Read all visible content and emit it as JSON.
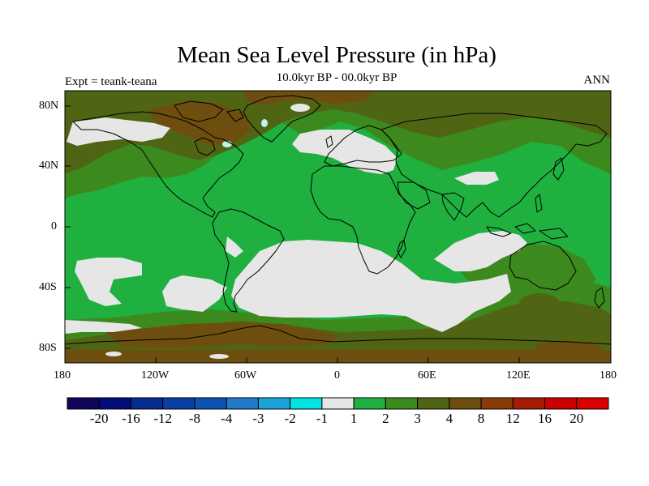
{
  "title": "Mean Sea Level Pressure (in hPa)",
  "subtitle": "10.0kyr BP - 00.0kyr BP",
  "experiment": "Expt = teank-teana",
  "season": "ANN",
  "colors": {
    "land_outline": "#000000",
    "frame": "#000000",
    "band_neg1_1": "#e6e6e6",
    "band_1_2": "#1fb040",
    "band_2_3": "#3c8a1e",
    "band_3_4": "#4f6514",
    "band_4_8": "#6e4e0e",
    "polar_highlight": "#b9f6f0"
  },
  "chart_data": {
    "type": "map",
    "projection": "cylindrical equidistant",
    "variable": "Mean Sea Level Pressure anomaly",
    "units": "hPa",
    "xlim": [
      -180,
      180
    ],
    "ylim": [
      -90,
      90
    ],
    "x_ticks": [
      "180",
      "120W",
      "60W",
      "0",
      "60E",
      "120E",
      "180"
    ],
    "y_ticks": [
      "80N",
      "40N",
      "0",
      "40S",
      "80S"
    ],
    "colorbar": {
      "labels": [
        "-20",
        "-16",
        "-12",
        "-8",
        "-4",
        "-3",
        "-2",
        "-1",
        "1",
        "2",
        "3",
        "4",
        "8",
        "12",
        "16",
        "20"
      ],
      "colors": [
        "#10065c",
        "#040c7a",
        "#082d91",
        "#0a3ea4",
        "#0e52b2",
        "#1f7ac8",
        "#19a3d8",
        "#00e4e4",
        "#e6e6e6",
        "#1fb040",
        "#3c8a1e",
        "#4f6514",
        "#6e4e0e",
        "#893b08",
        "#a61c04",
        "#cc0000",
        "#dd0000"
      ]
    }
  }
}
